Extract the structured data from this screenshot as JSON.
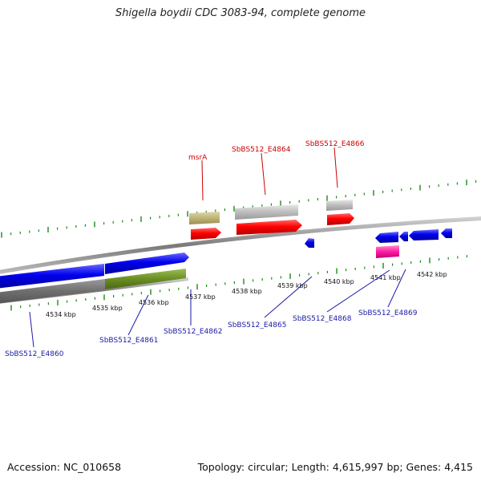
{
  "title": "Shigella boydii CDC 3083-94, complete genome",
  "footer": {
    "accession": "Accession: NC_010658",
    "topology": "Topology: circular; Length: 4,615,997 bp; Genes: 4,415"
  },
  "scale_labels": [
    "4534 kbp",
    "4535 kbp",
    "4536 kbp",
    "4537 kbp",
    "4538 kbp",
    "4539 kbp",
    "4540 kbp",
    "4541 kbp",
    "4542 kbp"
  ],
  "gene_labels_top": [
    "msrA",
    "SbBS512_E4864",
    "SbBS512_E4866"
  ],
  "gene_labels_bottom": [
    "SbBS512_E4860",
    "SbBS512_E4861",
    "SbBS512_E4862",
    "SbBS512_E4865",
    "SbBS512_E4868",
    "SbBS512_E4869"
  ],
  "colors": {
    "backbone": "#8c8c8c",
    "tick": "#1a8a1a",
    "forward_cds": "#ff0000",
    "reverse_cds": "#0000ee",
    "label_top": "#cc0000",
    "label_bottom": "#1a1aa6",
    "gray_feature": "#bdbdbd",
    "olive_feature": "#c2b87a",
    "green_feature": "#6b8e23",
    "pink_feature": "#ff1aa0"
  }
}
